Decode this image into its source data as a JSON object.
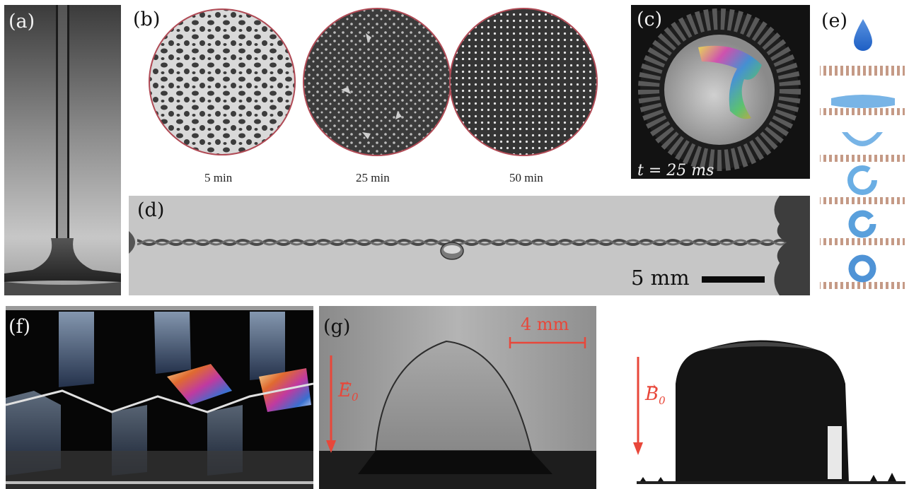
{
  "panels": {
    "a": {
      "label": "(a)"
    },
    "b": {
      "label": "(b)",
      "times": [
        "5 min",
        "25 min",
        "50 min"
      ]
    },
    "c": {
      "label": "(c)",
      "caption": "t = 25 ms"
    },
    "d": {
      "label": "(d)",
      "scale_label": "5 mm"
    },
    "e": {
      "label": "(e)"
    },
    "f": {
      "label": "(f)"
    },
    "g": {
      "label": "(g)",
      "scale_label": "4 mm",
      "field_label": "E",
      "field_subscript": "0"
    },
    "h": {
      "field_label": "B",
      "field_subscript": "0"
    }
  },
  "colors": {
    "annotation_red": "#e8473a",
    "droplet_blue": "#2f6fd1"
  },
  "icons": [
    "water-drop-icon",
    "field-arrow-icon",
    "scale-bar-icon"
  ]
}
